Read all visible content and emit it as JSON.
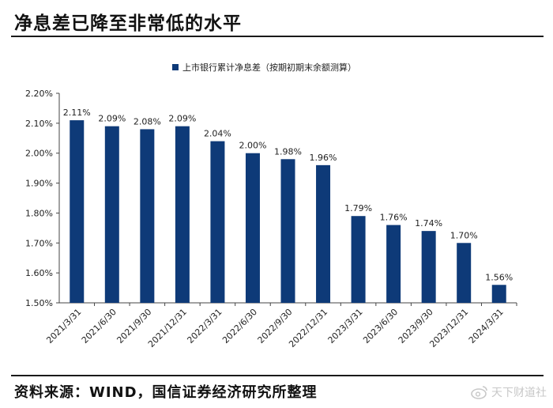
{
  "title": "净息差已降至非常低的水平",
  "source": "资料来源：WIND，国信证券经济研究所整理",
  "watermark": {
    "text": "天下财道社",
    "icon": "weibo-icon"
  },
  "colors": {
    "bar": "#0e3a78"
  },
  "chart_data": {
    "type": "bar",
    "title": "",
    "xlabel": "",
    "ylabel": "",
    "legend": "top-center",
    "grid": false,
    "ylim": [
      1.5,
      2.2
    ],
    "yticks": [
      "2.20%",
      "2.10%",
      "2.00%",
      "1.90%",
      "1.80%",
      "1.70%",
      "1.60%",
      "1.50%"
    ],
    "categories": [
      "2021/3/31",
      "2021/6/30",
      "2021/9/30",
      "2021/12/31",
      "2022/3/31",
      "2022/6/30",
      "2022/9/30",
      "2022/12/31",
      "2023/3/31",
      "2023/6/30",
      "2023/9/30",
      "2023/12/31",
      "2024/3/31"
    ],
    "series": [
      {
        "name": "上市银行累计净息差（按期初期末余额测算）",
        "values": [
          2.11,
          2.09,
          2.08,
          2.09,
          2.04,
          2.0,
          1.98,
          1.96,
          1.79,
          1.76,
          1.74,
          1.7,
          1.56
        ],
        "labels": [
          "2.11%",
          "2.09%",
          "2.08%",
          "2.09%",
          "2.04%",
          "2.00%",
          "1.98%",
          "1.96%",
          "1.79%",
          "1.76%",
          "1.74%",
          "1.70%",
          "1.56%"
        ]
      }
    ]
  }
}
